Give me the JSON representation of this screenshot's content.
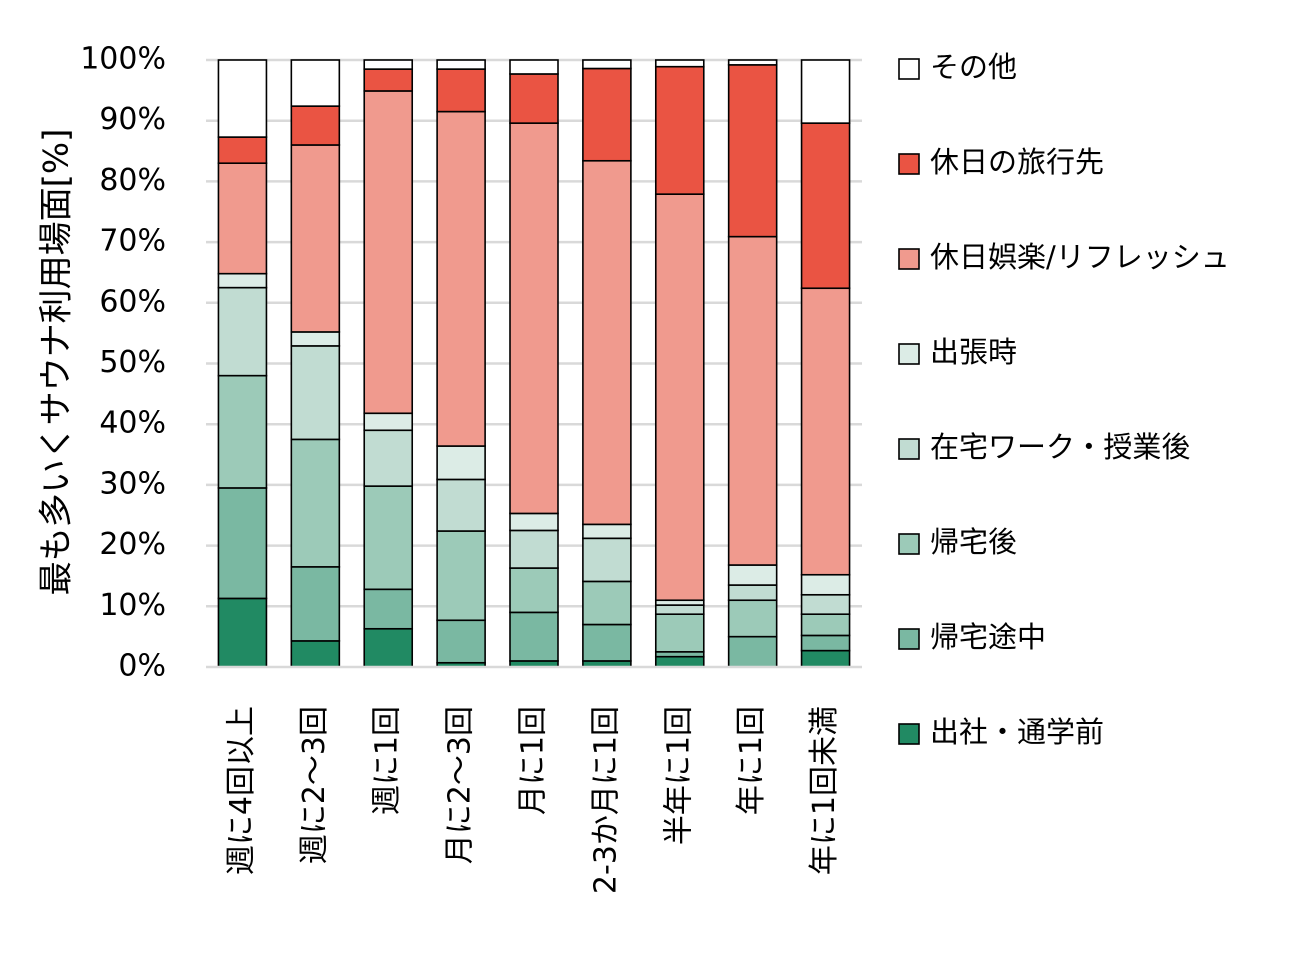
{
  "chart_data": {
    "type": "bar",
    "stacked": true,
    "ylabel": "最も多いくサウナ利用場面[%]",
    "ylim": [
      0,
      100
    ],
    "yticks": [
      "0%",
      "10%",
      "20%",
      "30%",
      "40%",
      "50%",
      "60%",
      "70%",
      "80%",
      "90%",
      "100%"
    ],
    "grid": true,
    "legend_position": "right",
    "categories": [
      "週に4回以上",
      "週に2～3回",
      "週に1回",
      "月に2～3回",
      "月に1回",
      "2-3か月に1回",
      "半年に1回",
      "年に1回",
      "年に1回未満"
    ],
    "series": [
      {
        "name": "出社・通学前",
        "color": "#218a63",
        "values": [
          11.3,
          4.3,
          6.3,
          0.7,
          1.0,
          1.0,
          1.7,
          0.0,
          2.7
        ]
      },
      {
        "name": "帰宅途中",
        "color": "#7ab8a2",
        "values": [
          18.2,
          12.2,
          6.5,
          7.0,
          8.0,
          6.0,
          0.8,
          5.0,
          2.5
        ]
      },
      {
        "name": "帰宅後",
        "color": "#9ccab8",
        "values": [
          18.5,
          21.0,
          17.0,
          14.7,
          7.3,
          7.1,
          6.2,
          6.0,
          3.5
        ]
      },
      {
        "name": "在宅ワーク・授業後",
        "color": "#c1dcd2",
        "values": [
          14.5,
          15.4,
          9.2,
          8.5,
          6.2,
          7.1,
          1.5,
          2.5,
          3.2
        ]
      },
      {
        "name": "出張時",
        "color": "#dcece6",
        "values": [
          2.3,
          2.3,
          2.8,
          5.5,
          2.8,
          2.3,
          0.8,
          3.3,
          3.3
        ]
      },
      {
        "name": "休日娯楽/リフレッシュ",
        "color": "#f09a8e",
        "values": [
          18.2,
          30.8,
          53.1,
          55.1,
          64.3,
          59.9,
          66.9,
          54.1,
          47.2
        ]
      },
      {
        "name": "休日の旅行先",
        "color": "#ea5443",
        "values": [
          4.3,
          6.4,
          3.6,
          7.0,
          8.1,
          15.2,
          21.0,
          28.3,
          27.2
        ]
      },
      {
        "name": "その他",
        "color": "#ffffff",
        "values": [
          12.7,
          7.6,
          1.5,
          1.5,
          2.3,
          1.4,
          1.1,
          0.8,
          10.4
        ]
      }
    ]
  }
}
